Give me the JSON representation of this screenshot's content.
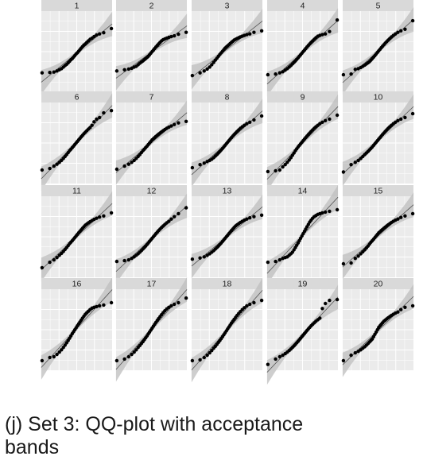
{
  "chart_data": {
    "type": "scatter",
    "panels": [
      {
        "label": "1",
        "y": [
          -0.55,
          -0.54,
          -0.53,
          -0.5,
          -0.47,
          -0.44,
          -0.4,
          -0.36,
          -0.33,
          -0.29,
          -0.25,
          -0.21,
          -0.18,
          -0.14,
          -0.1,
          -0.06,
          -0.03,
          0.01,
          0.05,
          0.09,
          0.13,
          0.17,
          0.2,
          0.24,
          0.28,
          0.32,
          0.35,
          0.39,
          0.43,
          0.46,
          0.49,
          0.6
        ]
      },
      {
        "label": "2",
        "y": [
          -0.5,
          -0.47,
          -0.45,
          -0.43,
          -0.4,
          -0.38,
          -0.34,
          -0.3,
          -0.27,
          -0.24,
          -0.21,
          -0.18,
          -0.15,
          -0.12,
          -0.08,
          -0.04,
          0.0,
          0.04,
          0.08,
          0.12,
          0.16,
          0.2,
          0.24,
          0.28,
          0.31,
          0.33,
          0.35,
          0.37,
          0.39,
          0.41,
          0.45,
          0.5
        ]
      },
      {
        "label": "3",
        "y": [
          -0.62,
          -0.55,
          -0.5,
          -0.45,
          -0.4,
          -0.34,
          -0.28,
          -0.22,
          -0.17,
          -0.12,
          -0.07,
          -0.03,
          0.01,
          0.05,
          0.09,
          0.12,
          0.15,
          0.18,
          0.21,
          0.24,
          0.27,
          0.3,
          0.32,
          0.34,
          0.36,
          0.38,
          0.4,
          0.42,
          0.44,
          0.46,
          0.5,
          0.54
        ]
      },
      {
        "label": "4",
        "y": [
          -0.6,
          -0.58,
          -0.55,
          -0.52,
          -0.48,
          -0.44,
          -0.4,
          -0.36,
          -0.32,
          -0.28,
          -0.24,
          -0.2,
          -0.16,
          -0.12,
          -0.08,
          -0.04,
          0.0,
          0.04,
          0.08,
          0.12,
          0.16,
          0.2,
          0.24,
          0.28,
          0.32,
          0.36,
          0.4,
          0.42,
          0.44,
          0.46,
          0.52,
          0.82
        ]
      },
      {
        "label": "5",
        "y": [
          -0.6,
          -0.58,
          -0.46,
          -0.44,
          -0.41,
          -0.38,
          -0.35,
          -0.32,
          -0.29,
          -0.26,
          -0.22,
          -0.18,
          -0.14,
          -0.1,
          -0.06,
          -0.02,
          0.02,
          0.06,
          0.1,
          0.14,
          0.18,
          0.22,
          0.26,
          0.3,
          0.34,
          0.38,
          0.42,
          0.46,
          0.5,
          0.54,
          0.58,
          0.8
        ]
      },
      {
        "label": "6",
        "y": [
          -0.7,
          -0.66,
          -0.6,
          -0.55,
          -0.5,
          -0.45,
          -0.4,
          -0.35,
          -0.3,
          -0.25,
          -0.2,
          -0.16,
          -0.12,
          -0.08,
          -0.04,
          0.0,
          0.04,
          0.08,
          0.12,
          0.16,
          0.2,
          0.24,
          0.28,
          0.32,
          0.36,
          0.4,
          0.46,
          0.55,
          0.62,
          0.66,
          0.78,
          0.84
        ]
      },
      {
        "label": "7",
        "y": [
          -0.68,
          -0.6,
          -0.55,
          -0.5,
          -0.45,
          -0.4,
          -0.35,
          -0.3,
          -0.25,
          -0.2,
          -0.16,
          -0.12,
          -0.08,
          -0.04,
          0.0,
          0.04,
          0.08,
          0.11,
          0.14,
          0.17,
          0.2,
          0.23,
          0.26,
          0.29,
          0.32,
          0.35,
          0.38,
          0.41,
          0.44,
          0.48,
          0.52,
          0.56
        ]
      },
      {
        "label": "8",
        "y": [
          -0.64,
          -0.56,
          -0.52,
          -0.48,
          -0.45,
          -0.42,
          -0.38,
          -0.34,
          -0.3,
          -0.26,
          -0.22,
          -0.18,
          -0.14,
          -0.1,
          -0.06,
          -0.02,
          0.02,
          0.06,
          0.1,
          0.14,
          0.18,
          0.22,
          0.26,
          0.3,
          0.34,
          0.38,
          0.42,
          0.46,
          0.5,
          0.54,
          0.6,
          0.7
        ]
      },
      {
        "label": "9",
        "y": [
          -0.74,
          -0.72,
          -0.7,
          -0.62,
          -0.56,
          -0.5,
          -0.44,
          -0.38,
          -0.32,
          -0.26,
          -0.2,
          -0.15,
          -0.1,
          -0.06,
          -0.02,
          0.02,
          0.06,
          0.1,
          0.14,
          0.18,
          0.22,
          0.26,
          0.3,
          0.34,
          0.38,
          0.42,
          0.46,
          0.5,
          0.54,
          0.58,
          0.62,
          0.72
        ]
      },
      {
        "label": "10",
        "y": [
          -0.75,
          -0.56,
          -0.5,
          -0.45,
          -0.4,
          -0.35,
          -0.3,
          -0.26,
          -0.22,
          -0.18,
          -0.14,
          -0.1,
          -0.06,
          -0.02,
          0.02,
          0.06,
          0.1,
          0.14,
          0.18,
          0.22,
          0.26,
          0.3,
          0.34,
          0.38,
          0.42,
          0.46,
          0.5,
          0.54,
          0.58,
          0.62,
          0.66,
          0.76
        ]
      },
      {
        "label": "11",
        "y": [
          -0.8,
          -0.66,
          -0.6,
          -0.54,
          -0.48,
          -0.43,
          -0.38,
          -0.33,
          -0.28,
          -0.23,
          -0.18,
          -0.14,
          -0.1,
          -0.06,
          -0.02,
          0.02,
          0.06,
          0.1,
          0.14,
          0.18,
          0.22,
          0.26,
          0.3,
          0.33,
          0.36,
          0.39,
          0.42,
          0.45,
          0.48,
          0.51,
          0.54,
          0.62
        ]
      },
      {
        "label": "12",
        "y": [
          -0.64,
          -0.62,
          -0.6,
          -0.56,
          -0.52,
          -0.48,
          -0.44,
          -0.4,
          -0.36,
          -0.32,
          -0.28,
          -0.24,
          -0.2,
          -0.16,
          -0.12,
          -0.08,
          -0.04,
          0.0,
          0.04,
          0.08,
          0.12,
          0.16,
          0.2,
          0.24,
          0.28,
          0.32,
          0.36,
          0.4,
          0.46,
          0.52,
          0.6,
          0.75
        ]
      },
      {
        "label": "13",
        "y": [
          -0.58,
          -0.55,
          -0.52,
          -0.48,
          -0.44,
          -0.4,
          -0.36,
          -0.32,
          -0.28,
          -0.24,
          -0.2,
          -0.16,
          -0.12,
          -0.08,
          -0.04,
          0.0,
          0.04,
          0.08,
          0.12,
          0.16,
          0.2,
          0.24,
          0.28,
          0.31,
          0.34,
          0.37,
          0.4,
          0.43,
          0.46,
          0.49,
          0.52,
          0.56
        ]
      },
      {
        "label": "14",
        "y": [
          -0.66,
          -0.64,
          -0.6,
          -0.56,
          -0.54,
          -0.52,
          -0.48,
          -0.44,
          -0.4,
          -0.34,
          -0.28,
          -0.22,
          -0.16,
          -0.1,
          -0.04,
          0.02,
          0.08,
          0.14,
          0.2,
          0.26,
          0.32,
          0.38,
          0.43,
          0.48,
          0.52,
          0.55,
          0.58,
          0.6,
          0.62,
          0.64,
          0.66,
          0.7
        ]
      },
      {
        "label": "15",
        "y": [
          -0.7,
          -0.68,
          -0.56,
          -0.5,
          -0.44,
          -0.39,
          -0.34,
          -0.29,
          -0.24,
          -0.19,
          -0.14,
          -0.1,
          -0.06,
          -0.02,
          0.02,
          0.06,
          0.1,
          0.13,
          0.16,
          0.19,
          0.22,
          0.25,
          0.28,
          0.31,
          0.34,
          0.37,
          0.4,
          0.43,
          0.46,
          0.5,
          0.54,
          0.6
        ]
      },
      {
        "label": "16",
        "y": [
          -0.8,
          -0.72,
          -0.7,
          -0.64,
          -0.58,
          -0.52,
          -0.46,
          -0.4,
          -0.34,
          -0.28,
          -0.22,
          -0.16,
          -0.1,
          -0.05,
          0.0,
          0.05,
          0.1,
          0.15,
          0.2,
          0.25,
          0.3,
          0.35,
          0.4,
          0.44,
          0.48,
          0.52,
          0.56,
          0.58,
          0.6,
          0.62,
          0.64,
          0.7
        ]
      },
      {
        "label": "17",
        "y": [
          -0.8,
          -0.76,
          -0.7,
          -0.64,
          -0.58,
          -0.52,
          -0.46,
          -0.41,
          -0.36,
          -0.31,
          -0.26,
          -0.21,
          -0.16,
          -0.11,
          -0.06,
          -0.01,
          0.04,
          0.09,
          0.14,
          0.19,
          0.24,
          0.29,
          0.34,
          0.39,
          0.44,
          0.49,
          0.54,
          0.58,
          0.62,
          0.66,
          0.7,
          0.82
        ]
      },
      {
        "label": "18",
        "y": [
          -0.8,
          -0.78,
          -0.72,
          -0.66,
          -0.6,
          -0.54,
          -0.48,
          -0.43,
          -0.38,
          -0.33,
          -0.28,
          -0.23,
          -0.18,
          -0.13,
          -0.08,
          -0.03,
          0.02,
          0.07,
          0.12,
          0.17,
          0.22,
          0.27,
          0.32,
          0.37,
          0.42,
          0.47,
          0.52,
          0.57,
          0.62,
          0.66,
          0.7,
          0.76
        ]
      },
      {
        "label": "19",
        "y": [
          -0.9,
          -0.76,
          -0.7,
          -0.66,
          -0.62,
          -0.58,
          -0.54,
          -0.5,
          -0.46,
          -0.42,
          -0.38,
          -0.34,
          -0.3,
          -0.26,
          -0.22,
          -0.18,
          -0.14,
          -0.1,
          -0.06,
          -0.02,
          0.02,
          0.06,
          0.1,
          0.14,
          0.18,
          0.22,
          0.26,
          0.3,
          0.55,
          0.68,
          0.76,
          0.78
        ]
      },
      {
        "label": "20",
        "y": [
          -0.8,
          -0.66,
          -0.6,
          -0.56,
          -0.52,
          -0.48,
          -0.44,
          -0.4,
          -0.36,
          -0.32,
          -0.28,
          -0.24,
          -0.18,
          -0.12,
          -0.06,
          0.0,
          0.06,
          0.1,
          0.14,
          0.18,
          0.22,
          0.25,
          0.28,
          0.31,
          0.34,
          0.37,
          0.4,
          0.43,
          0.46,
          0.52,
          0.58,
          0.62
        ]
      }
    ],
    "xlim": [
      -2.2,
      2.2
    ],
    "ylim": [
      -1.05,
      1.05
    ],
    "grid": true,
    "reference_line": true,
    "acceptance_band": true,
    "colors": {
      "panel_bg": "#ebebeb",
      "strip_bg": "#d9d9d9",
      "grid": "#ffffff",
      "points": "#000000",
      "band": "#bdbdbd",
      "line": "#555555"
    }
  },
  "caption": "(j) Set 3: QQ-plot with acceptance\nbands"
}
